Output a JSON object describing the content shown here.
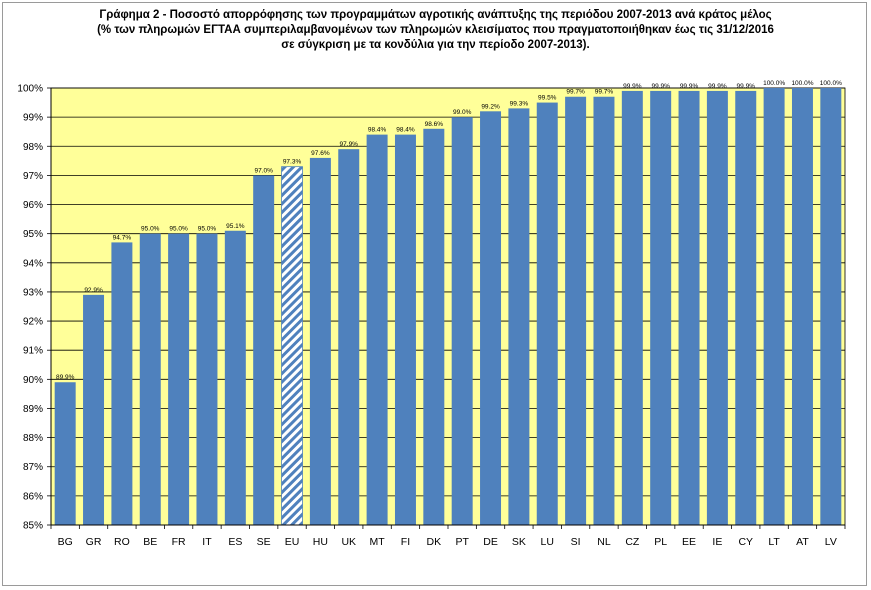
{
  "colors": {
    "plot_background": "#ffff99",
    "bar": "#4f81bd",
    "eu_bar_hatch": "#4f81bd",
    "gridline": "#000000"
  },
  "chart_data": {
    "type": "bar",
    "title_lines": [
      "Γράφημα 2 - Ποσοστό απορρόφησης των προγραμμάτων αγροτικής ανάπτυξης της περιόδου 2007-2013 ανά κράτος μέλος",
      "(% των πληρωμών ΕΓΤΑΑ συμπεριλαμβανομένων των πληρωμών κλεισίματος που πραγματοποιήθηκαν έως τις 31/12/2016",
      "σε σύγκριση με τα κονδύλια για την  περίοδο 2007-2013)."
    ],
    "categories": [
      "BG",
      "GR",
      "RO",
      "BE",
      "FR",
      "IT",
      "ES",
      "SE",
      "EU",
      "HU",
      "UK",
      "MT",
      "FI",
      "DK",
      "PT",
      "DE",
      "SK",
      "LU",
      "SI",
      "NL",
      "CZ",
      "PL",
      "EE",
      "IE",
      "CY",
      "LT",
      "AT",
      "LV"
    ],
    "values": [
      89.9,
      92.9,
      94.7,
      95.0,
      95.0,
      95.0,
      95.1,
      97.0,
      97.3,
      97.6,
      97.9,
      98.4,
      98.4,
      98.6,
      99.0,
      99.2,
      99.3,
      99.5,
      99.7,
      99.7,
      99.9,
      99.9,
      99.9,
      99.9,
      99.9,
      100.0,
      100.0,
      100.0
    ],
    "data_labels": [
      "89.9%",
      "92.9%",
      "94.7%",
      "95.0%",
      "95.0%",
      "95.0%",
      "95.1%",
      "97.0%",
      "97.3%",
      "97.6%",
      "97.9%",
      "98.4%",
      "98.4%",
      "98.6%",
      "99.0%",
      "99.2%",
      "99.3%",
      "99.5%",
      "99.7%",
      "99.7%",
      "99.9%",
      "99.9%",
      "99.9%",
      "99.9%",
      "99.9%",
      "100.0%",
      "100.0%",
      "100.0%"
    ],
    "highlight_category": "EU",
    "ylim": [
      85,
      100
    ],
    "yticks": [
      85,
      86,
      87,
      88,
      89,
      90,
      91,
      92,
      93,
      94,
      95,
      96,
      97,
      98,
      99,
      100
    ],
    "ytick_labels": [
      "85%",
      "86%",
      "87%",
      "88%",
      "89%",
      "90%",
      "91%",
      "92%",
      "93%",
      "94%",
      "95%",
      "96%",
      "97%",
      "98%",
      "99%",
      "100%"
    ],
    "grid": true,
    "legend": "none",
    "xlabel": "",
    "ylabel": ""
  }
}
